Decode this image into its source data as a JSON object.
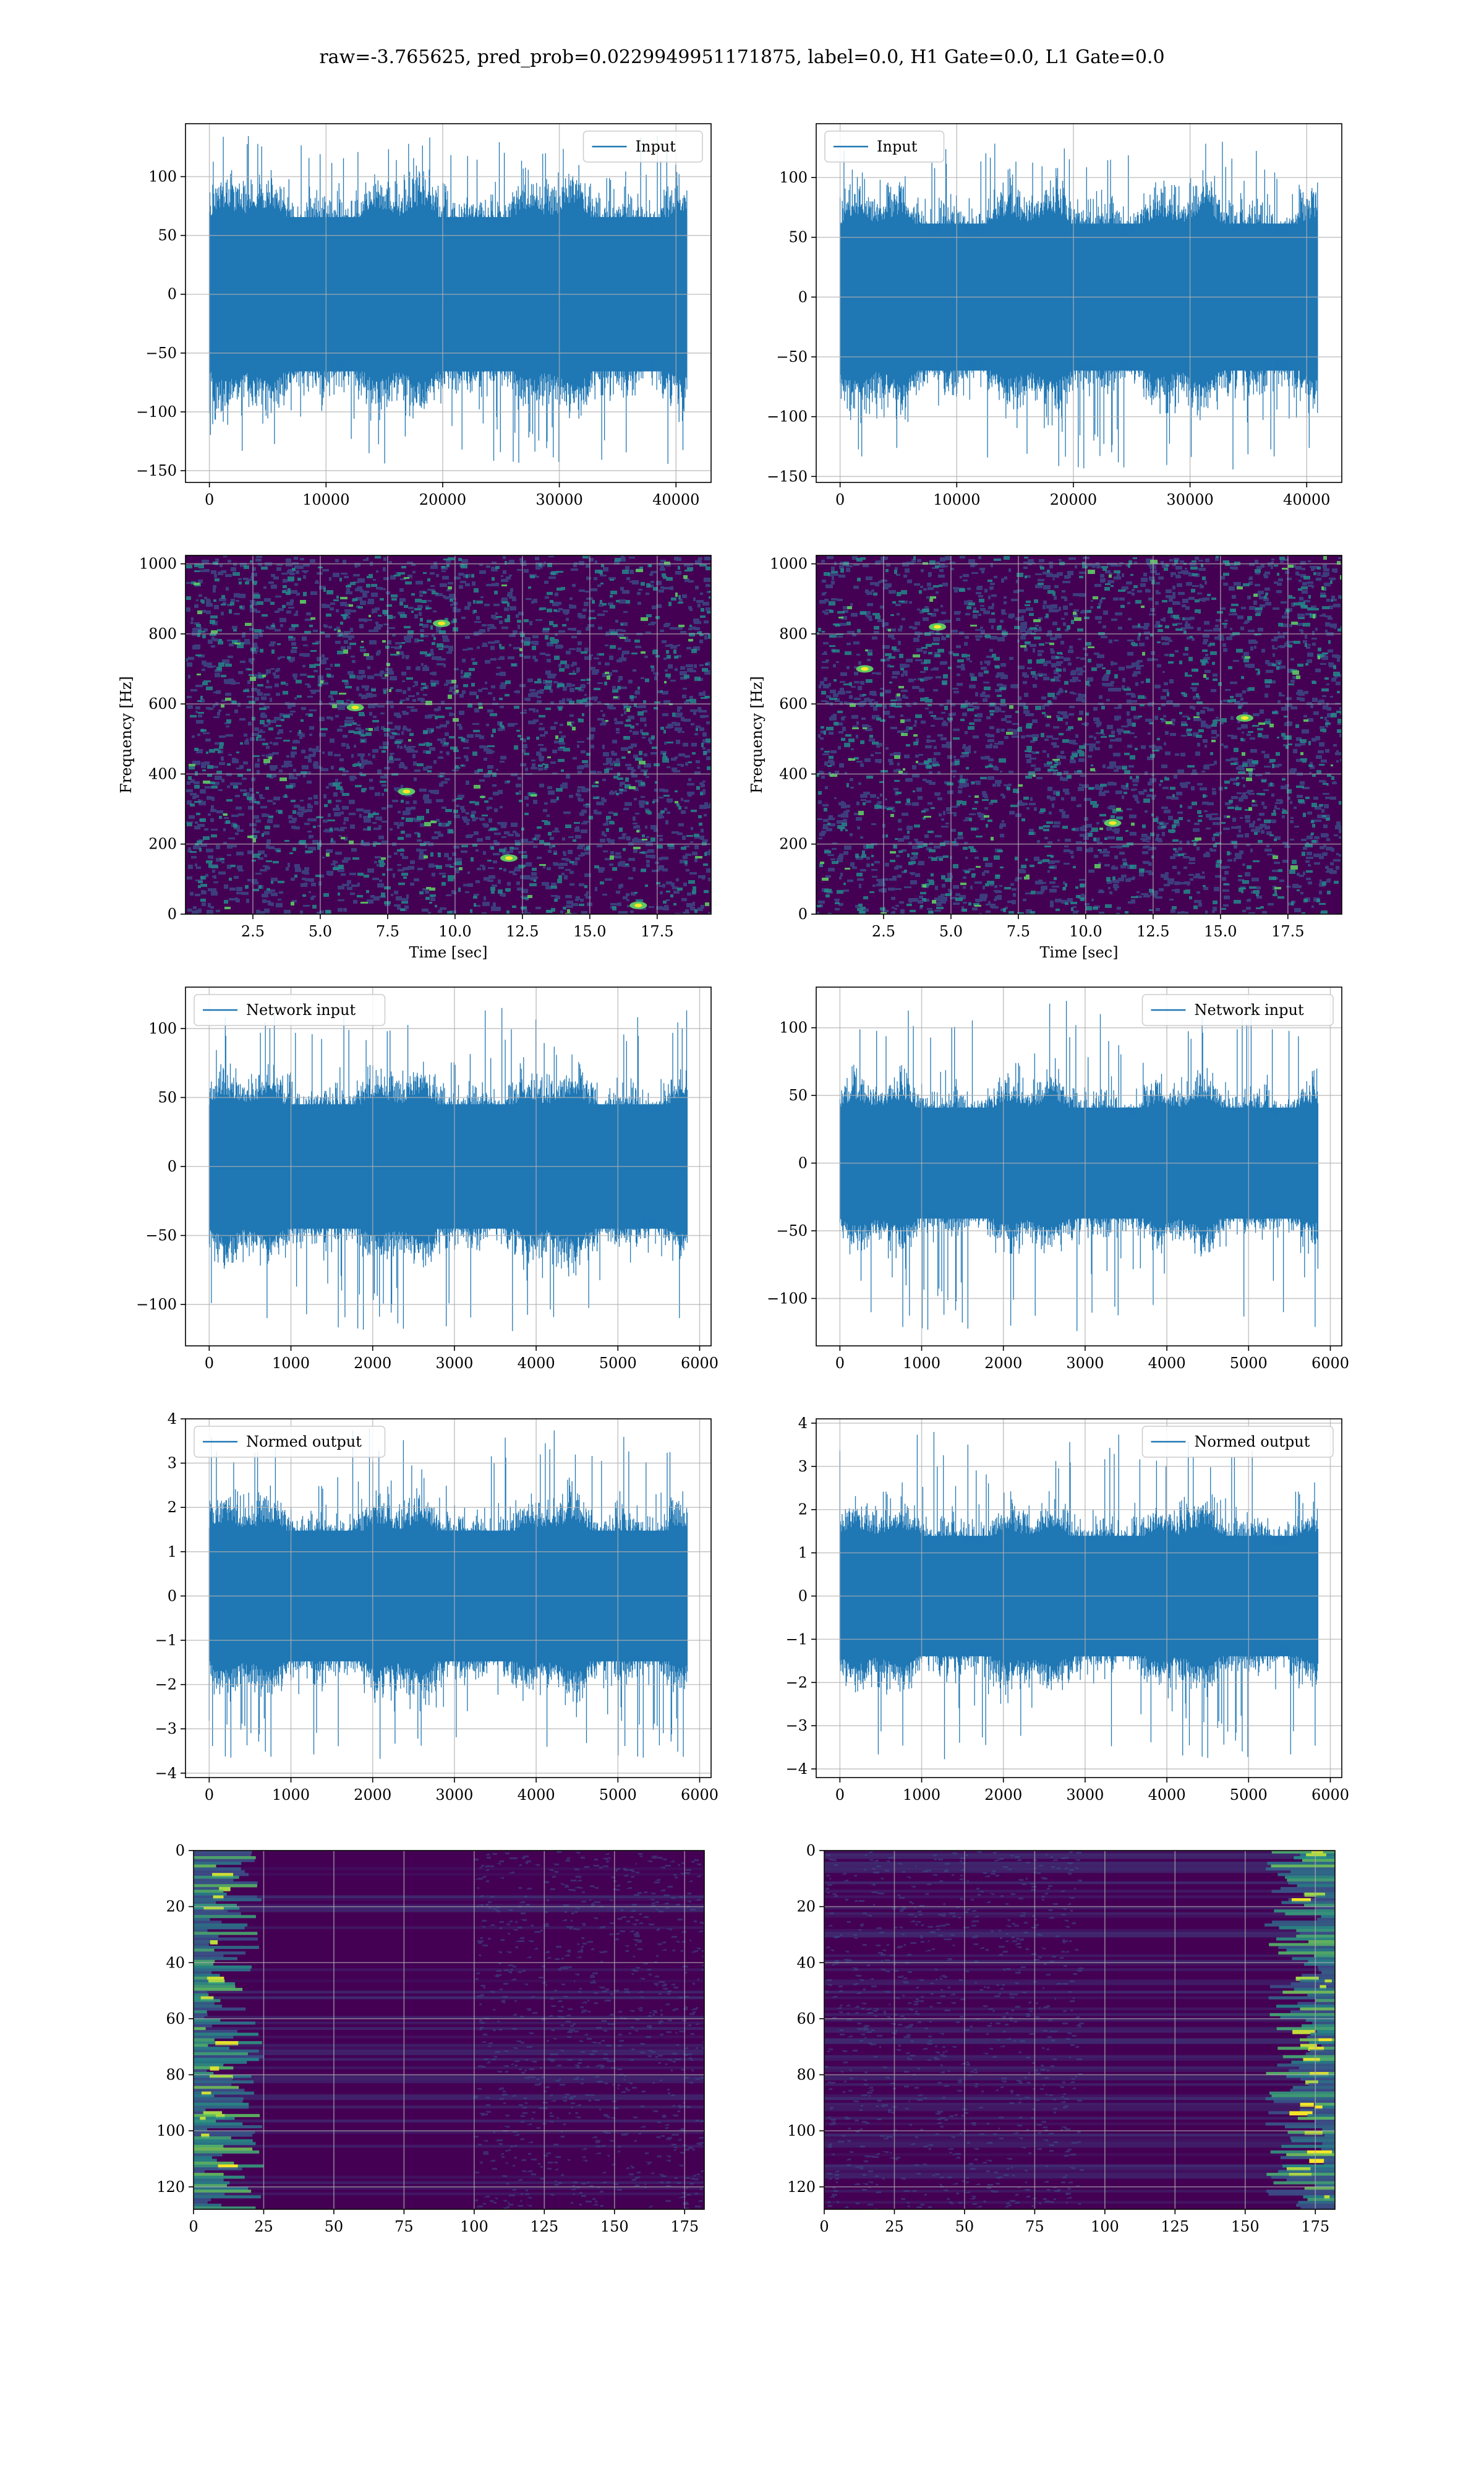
{
  "figure": {
    "suptitle": "raw=-3.765625, pred_prob=0.0229949951171875, label=0.0, H1 Gate=0.0, L1 Gate=0.0"
  },
  "colors": {
    "line": "#1f77b4",
    "grid": "#b0b0b0",
    "viridis_dark": "#440154",
    "viridis_mid": "#3b528b",
    "viridis_teal": "#21918c",
    "viridis_green": "#5ec962",
    "viridis_yellow": "#fde725"
  },
  "chart_data": [
    {
      "id": "input-h1",
      "type": "line",
      "series": [
        {
          "name": "Input",
          "x_range": [
            0,
            40960
          ],
          "y_typical": [
            -80,
            80
          ],
          "y_peaks": [
            -145,
            135
          ]
        }
      ],
      "xlim": [
        -2048,
        43008
      ],
      "ylim": [
        -160,
        145
      ],
      "xticks": [
        0,
        10000,
        20000,
        30000,
        40000
      ],
      "xtick_labels": [
        "0",
        "10000",
        "20000",
        "30000",
        "40000"
      ],
      "yticks": [
        -150,
        -100,
        -50,
        0,
        50,
        100
      ],
      "ytick_labels": [
        "−150",
        "−100",
        "−50",
        "0",
        "50",
        "100"
      ],
      "legend": "top-right",
      "grid": true,
      "xlabel": "",
      "ylabel": ""
    },
    {
      "id": "input-l1",
      "type": "line",
      "series": [
        {
          "name": "Input",
          "x_range": [
            0,
            40960
          ],
          "y_typical": [
            -75,
            75
          ],
          "y_peaks": [
            -145,
            130
          ]
        }
      ],
      "xlim": [
        -2048,
        43008
      ],
      "ylim": [
        -155,
        145
      ],
      "xticks": [
        0,
        10000,
        20000,
        30000,
        40000
      ],
      "xtick_labels": [
        "0",
        "10000",
        "20000",
        "30000",
        "40000"
      ],
      "yticks": [
        -150,
        -100,
        -50,
        0,
        50,
        100
      ],
      "ytick_labels": [
        "−150",
        "−100",
        "−50",
        "0",
        "50",
        "100"
      ],
      "legend": "top-left",
      "grid": true,
      "xlabel": "",
      "ylabel": ""
    },
    {
      "id": "spectrogram-h1",
      "type": "heatmap",
      "xlim": [
        0,
        19.5
      ],
      "ylim": [
        0,
        1024
      ],
      "xticks": [
        2.5,
        5.0,
        7.5,
        10.0,
        12.5,
        15.0,
        17.5
      ],
      "xtick_labels": [
        "2.5",
        "5.0",
        "7.5",
        "10.0",
        "12.5",
        "15.0",
        "17.5"
      ],
      "yticks": [
        0,
        200,
        400,
        600,
        800,
        1000
      ],
      "ytick_labels": [
        "0",
        "200",
        "400",
        "600",
        "800",
        "1000"
      ],
      "xlabel": "Time [sec]",
      "ylabel": "Frequency [Hz]",
      "grid": true,
      "hotspots": [
        [
          16.8,
          25
        ],
        [
          12.0,
          160
        ],
        [
          9.5,
          830
        ],
        [
          8.2,
          350
        ],
        [
          6.3,
          590
        ]
      ]
    },
    {
      "id": "spectrogram-l1",
      "type": "heatmap",
      "xlim": [
        0,
        19.5
      ],
      "ylim": [
        0,
        1024
      ],
      "xticks": [
        2.5,
        5.0,
        7.5,
        10.0,
        12.5,
        15.0,
        17.5
      ],
      "xtick_labels": [
        "2.5",
        "5.0",
        "7.5",
        "10.0",
        "12.5",
        "15.0",
        "17.5"
      ],
      "yticks": [
        0,
        200,
        400,
        600,
        800,
        1000
      ],
      "ytick_labels": [
        "0",
        "200",
        "400",
        "600",
        "800",
        "1000"
      ],
      "xlabel": "Time [sec]",
      "ylabel": "Frequency [Hz]",
      "grid": true,
      "hotspots": [
        [
          1.8,
          700
        ],
        [
          15.9,
          560
        ],
        [
          4.5,
          820
        ],
        [
          11.0,
          260
        ]
      ]
    },
    {
      "id": "network-input-h1",
      "type": "line",
      "series": [
        {
          "name": "Network input",
          "x_range": [
            0,
            5850
          ],
          "y_typical": [
            -55,
            55
          ],
          "y_peaks": [
            -120,
            115
          ]
        }
      ],
      "xlim": [
        -290,
        6140
      ],
      "ylim": [
        -130,
        130
      ],
      "xticks": [
        0,
        1000,
        2000,
        3000,
        4000,
        5000,
        6000
      ],
      "xtick_labels": [
        "0",
        "1000",
        "2000",
        "3000",
        "4000",
        "5000",
        "6000"
      ],
      "yticks": [
        -100,
        -50,
        0,
        50,
        100
      ],
      "ytick_labels": [
        "−100",
        "−50",
        "0",
        "50",
        "100"
      ],
      "legend": "top-left",
      "grid": true,
      "xlabel": "",
      "ylabel": ""
    },
    {
      "id": "network-input-l1",
      "type": "line",
      "series": [
        {
          "name": "Network input",
          "x_range": [
            0,
            5850
          ],
          "y_typical": [
            -50,
            50
          ],
          "y_peaks": [
            -125,
            120
          ]
        }
      ],
      "xlim": [
        -290,
        6140
      ],
      "ylim": [
        -135,
        130
      ],
      "xticks": [
        0,
        1000,
        2000,
        3000,
        4000,
        5000,
        6000
      ],
      "xtick_labels": [
        "0",
        "1000",
        "2000",
        "3000",
        "4000",
        "5000",
        "6000"
      ],
      "yticks": [
        -100,
        -50,
        0,
        50,
        100
      ],
      "ytick_labels": [
        "−100",
        "−50",
        "0",
        "50",
        "100"
      ],
      "legend": "top-right",
      "grid": true,
      "xlabel": "",
      "ylabel": ""
    },
    {
      "id": "normed-output-h1",
      "type": "line",
      "series": [
        {
          "name": "Normed output",
          "x_range": [
            0,
            5850
          ],
          "y_typical": [
            -1.8,
            1.8
          ],
          "y_peaks": [
            -3.7,
            3.8
          ]
        }
      ],
      "xlim": [
        -290,
        6140
      ],
      "ylim": [
        -4.1,
        4.0
      ],
      "xticks": [
        0,
        1000,
        2000,
        3000,
        4000,
        5000,
        6000
      ],
      "xtick_labels": [
        "0",
        "1000",
        "2000",
        "3000",
        "4000",
        "5000",
        "6000"
      ],
      "yticks": [
        -4,
        -3,
        -2,
        -1,
        0,
        1,
        2,
        3,
        4
      ],
      "ytick_labels": [
        "−4",
        "−3",
        "−2",
        "−1",
        "0",
        "1",
        "2",
        "3",
        "4"
      ],
      "legend": "top-left",
      "grid": true,
      "xlabel": "",
      "ylabel": ""
    },
    {
      "id": "normed-output-l1",
      "type": "line",
      "series": [
        {
          "name": "Normed output",
          "x_range": [
            0,
            5850
          ],
          "y_typical": [
            -1.7,
            1.7
          ],
          "y_peaks": [
            -3.8,
            3.8
          ]
        }
      ],
      "xlim": [
        -290,
        6140
      ],
      "ylim": [
        -4.2,
        4.1
      ],
      "xticks": [
        0,
        1000,
        2000,
        3000,
        4000,
        5000,
        6000
      ],
      "xtick_labels": [
        "0",
        "1000",
        "2000",
        "3000",
        "4000",
        "5000",
        "6000"
      ],
      "yticks": [
        -4,
        -3,
        -2,
        -1,
        0,
        1,
        2,
        3,
        4
      ],
      "ytick_labels": [
        "−4",
        "−3",
        "−2",
        "−1",
        "0",
        "1",
        "2",
        "3",
        "4"
      ],
      "legend": "top-right",
      "grid": true,
      "xlabel": "",
      "ylabel": ""
    },
    {
      "id": "feature-map-h1",
      "type": "heatmap",
      "rows": 128,
      "cols": 183,
      "xlim": [
        0,
        182
      ],
      "ylim": [
        128,
        0
      ],
      "xticks": [
        0,
        25,
        50,
        75,
        100,
        125,
        150,
        175
      ],
      "xtick_labels": [
        "0",
        "25",
        "50",
        "75",
        "100",
        "125",
        "150",
        "175"
      ],
      "yticks": [
        0,
        20,
        40,
        60,
        80,
        100,
        120
      ],
      "ytick_labels": [
        "0",
        "20",
        "40",
        "60",
        "80",
        "100",
        "120"
      ],
      "bright_side": "left",
      "grid": true,
      "xlabel": "",
      "ylabel": ""
    },
    {
      "id": "feature-map-l1",
      "type": "heatmap",
      "rows": 128,
      "cols": 183,
      "xlim": [
        0,
        182
      ],
      "ylim": [
        128,
        0
      ],
      "xticks": [
        0,
        25,
        50,
        75,
        100,
        125,
        150,
        175
      ],
      "xtick_labels": [
        "0",
        "25",
        "50",
        "75",
        "100",
        "125",
        "150",
        "175"
      ],
      "yticks": [
        0,
        20,
        40,
        60,
        80,
        100,
        120
      ],
      "ytick_labels": [
        "0",
        "20",
        "40",
        "60",
        "80",
        "100",
        "120"
      ],
      "bright_side": "right",
      "grid": true,
      "xlabel": "",
      "ylabel": ""
    }
  ]
}
